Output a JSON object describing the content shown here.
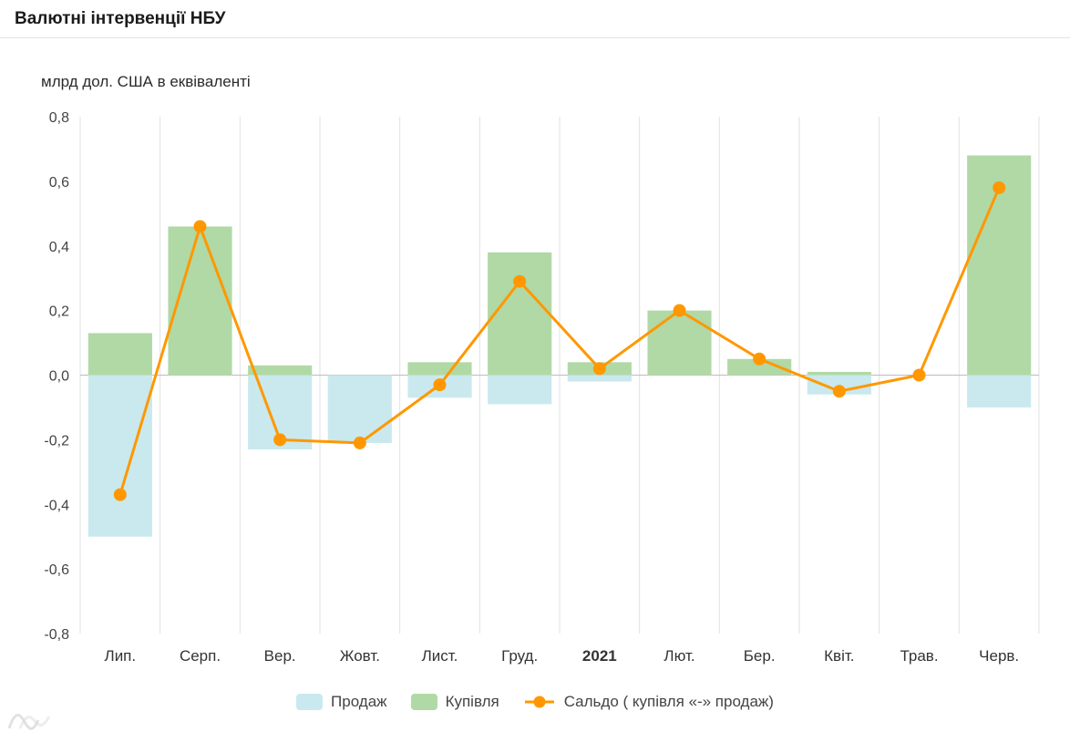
{
  "header": {
    "title": "Валютні інтервенції НБУ",
    "units_label": "млрд дол. США в еквіваленті"
  },
  "chart_data": {
    "type": "bar",
    "subtype": "column-and-line-combo",
    "title": "Валютні інтервенції НБУ",
    "ylabel": "млрд дол. США в еквіваленті",
    "categories": [
      "Лип.",
      "Серп.",
      "Вер.",
      "Жовт.",
      "Лист.",
      "Груд.",
      "2021",
      "Лют.",
      "Бер.",
      "Квіт.",
      "Трав.",
      "Черв."
    ],
    "emphasized_category": "2021",
    "series": [
      {
        "key": "prodazh",
        "name": "Продаж",
        "type": "bar",
        "color": "#c9e9ee",
        "values": [
          -0.5,
          0,
          -0.23,
          -0.21,
          -0.07,
          -0.09,
          -0.02,
          0,
          0,
          -0.06,
          0,
          -0.1
        ]
      },
      {
        "key": "kupivlia",
        "name": "Купівля",
        "type": "bar",
        "color": "#b0d9a6",
        "values": [
          0.13,
          0.46,
          0.03,
          0,
          0.04,
          0.38,
          0.04,
          0.2,
          0.05,
          0.01,
          0,
          0.68
        ]
      },
      {
        "key": "saldo",
        "name": "Сальдо ( купівля «-» продаж)",
        "type": "line",
        "color": "#ff9800",
        "values": [
          -0.37,
          0.46,
          -0.2,
          -0.21,
          -0.03,
          0.29,
          0.02,
          0.2,
          0.05,
          -0.05,
          0.0,
          0.58
        ]
      }
    ],
    "ylim": [
      -0.8,
      0.8
    ],
    "ytick_step": 0.2,
    "decimal_separator": ",",
    "grid": "vertical",
    "legend_position": "bottom",
    "colors": {
      "grid": "#e2e2e2",
      "zero_line": "#bdbdbd",
      "axis_text": "#444444",
      "category_text": "#333333"
    }
  }
}
